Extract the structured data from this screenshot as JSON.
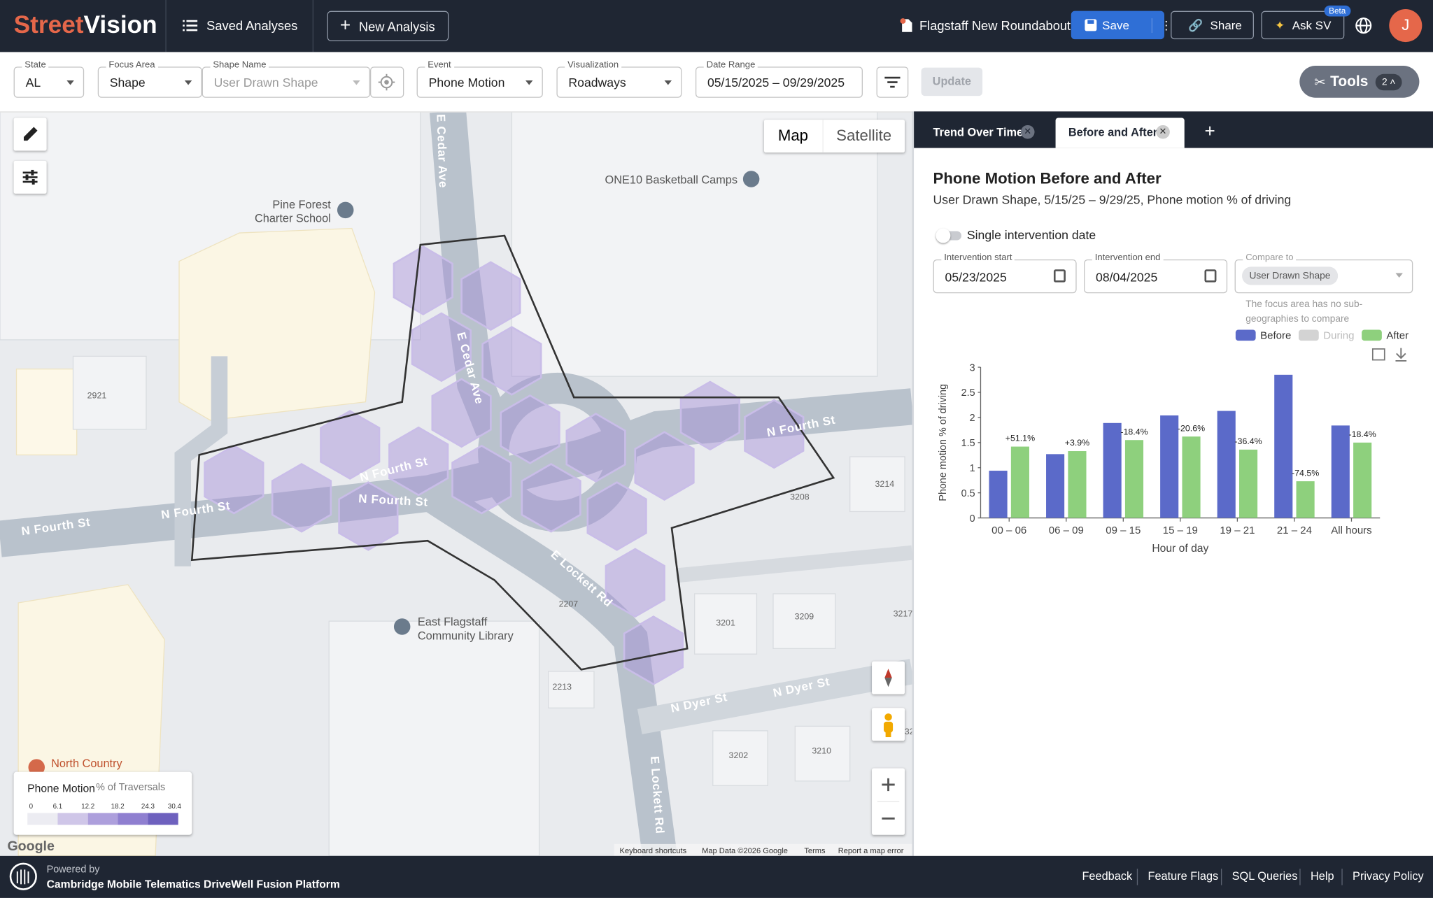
{
  "header": {
    "brand_part1": "Street",
    "brand_part2": "Vision",
    "saved": "Saved Analyses",
    "new": "New Analysis",
    "project": "Flagstaff New Roundabout",
    "save": "Save",
    "share": "Share",
    "ask": "Ask SV",
    "beta": "Beta",
    "avatar": "J"
  },
  "filters": {
    "fields": [
      {
        "label": "State",
        "value": "AL"
      },
      {
        "label": "Focus Area",
        "value": "Shape"
      },
      {
        "label": "Shape Name",
        "value": "User Drawn Shape"
      },
      {
        "label": "Event",
        "value": "Phone Motion"
      },
      {
        "label": "Visualization",
        "value": "Roadways"
      },
      {
        "label": "Date Range",
        "value": "05/15/2025 – 09/29/2025"
      }
    ],
    "update": "Update",
    "tools": "Tools",
    "tools_count": 2
  },
  "map": {
    "toggle": [
      "Map",
      "Satellite"
    ],
    "labels": [
      "E Cedar Ave",
      "E Cedar Ave",
      "N Fourth St",
      "N Fourth St",
      "N Fourth St",
      "N Fourth St",
      "N Fourth St",
      "E Lockett Rd",
      "E Lockett Rd",
      "N Dyer St",
      "N Dyer St",
      "Pine Forest",
      "Charter School",
      "ONE10 Basketball Camps",
      "East Flagstaff",
      "Community Library",
      "North Country",
      "2921",
      "3214",
      "3208",
      "2207",
      "3201",
      "3209",
      "3217",
      "2213",
      "3202",
      "3210",
      "32"
    ],
    "legend": {
      "title": "Phone Motion",
      "unit": "% of Traversals",
      "ticks": [
        0,
        6.1,
        12.2,
        18.2,
        24.3,
        30.4
      ]
    },
    "attribution": [
      "Keyboard shortcuts",
      "Map Data ©2026 Google",
      "Terms",
      "Report a map error"
    ],
    "logo": "Google"
  },
  "panel": {
    "tabs": [
      "Trend Over Time",
      "Before and After"
    ],
    "title": "Phone Motion Before and After",
    "subtitle": "User Drawn Shape, 5/15/25 – 9/29/25, Phone motion % of driving",
    "toggle_label": "Single intervention date",
    "fields": [
      {
        "label": "Intervention start",
        "value": "05/23/2025"
      },
      {
        "label": "Intervention end",
        "value": "08/04/2025"
      }
    ],
    "compare": {
      "label": "Compare to",
      "value": "User Drawn Shape"
    },
    "note": "The focus area has no sub-geographies to compare"
  },
  "chart_data": {
    "type": "bar",
    "y_label": "Phone motion % of driving",
    "x_label": "Hour of day",
    "categories": [
      "00 – 06",
      "06 – 09",
      "09 – 15",
      "15 – 19",
      "19 – 21",
      "21 – 24",
      "All hours"
    ],
    "series": [
      {
        "name": "Before",
        "color": "#5b6ac9",
        "values": [
          0.94,
          1.27,
          1.89,
          2.04,
          2.13,
          2.85,
          1.84
        ]
      },
      {
        "name": "During",
        "color": "#d3d3d3",
        "values": [
          null,
          null,
          null,
          null,
          null,
          null,
          null
        ]
      },
      {
        "name": "After",
        "color": "#8ed07d",
        "values": [
          1.42,
          1.33,
          1.55,
          1.62,
          1.36,
          0.73,
          1.5
        ]
      }
    ],
    "change_labels": [
      "+51.1%",
      "+3.9%",
      "-18.4%",
      "-20.6%",
      "-36.4%",
      "-74.5%",
      "-18.4%"
    ],
    "ylim": [
      0,
      3
    ],
    "yticks": [
      0,
      0.5,
      1,
      1.5,
      2,
      2.5,
      3
    ],
    "grid": false
  },
  "footer": {
    "powered": "Powered by",
    "platform": "Cambridge Mobile Telematics DriveWell Fusion Platform",
    "links": [
      "Feedback",
      "Feature Flags",
      "SQL Queries",
      "Help",
      "Privacy Policy"
    ]
  }
}
